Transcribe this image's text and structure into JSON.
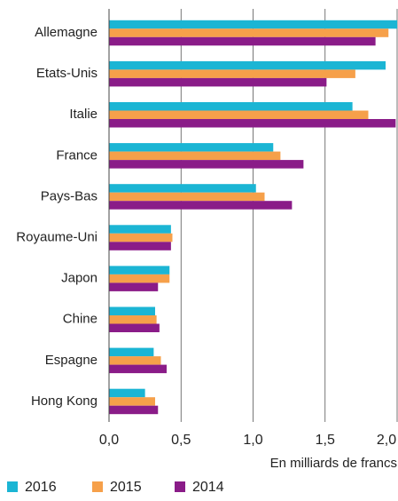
{
  "chart_data": {
    "type": "hbar",
    "categories": [
      "Allemagne",
      "Etats-Unis",
      "Italie",
      "France",
      "Pays-Bas",
      "Royaume-Uni",
      "Japon",
      "Chine",
      "Espagne",
      "Hong Kong"
    ],
    "series": [
      {
        "name": "2016",
        "color": "#1bb5d4",
        "values": [
          2.0,
          1.92,
          1.69,
          1.14,
          1.02,
          0.43,
          0.42,
          0.32,
          0.31,
          0.25
        ]
      },
      {
        "name": "2015",
        "color": "#f6a04a",
        "values": [
          1.94,
          1.71,
          1.8,
          1.19,
          1.08,
          0.44,
          0.42,
          0.33,
          0.36,
          0.32
        ]
      },
      {
        "name": "2014",
        "color": "#8a1c88",
        "values": [
          1.85,
          1.51,
          1.99,
          1.35,
          1.27,
          0.43,
          0.34,
          0.35,
          0.4,
          0.34
        ]
      }
    ],
    "xlabel": "En milliards de francs",
    "xlim": [
      0,
      2.0
    ],
    "xticks": [
      {
        "value": 0,
        "label": "0,0"
      },
      {
        "value": 0.5,
        "label": "0,5"
      },
      {
        "value": 1.0,
        "label": "1,0"
      },
      {
        "value": 1.5,
        "label": "1,5"
      },
      {
        "value": 2.0,
        "label": "2,0"
      }
    ],
    "grid": true,
    "legend": "bottom"
  }
}
